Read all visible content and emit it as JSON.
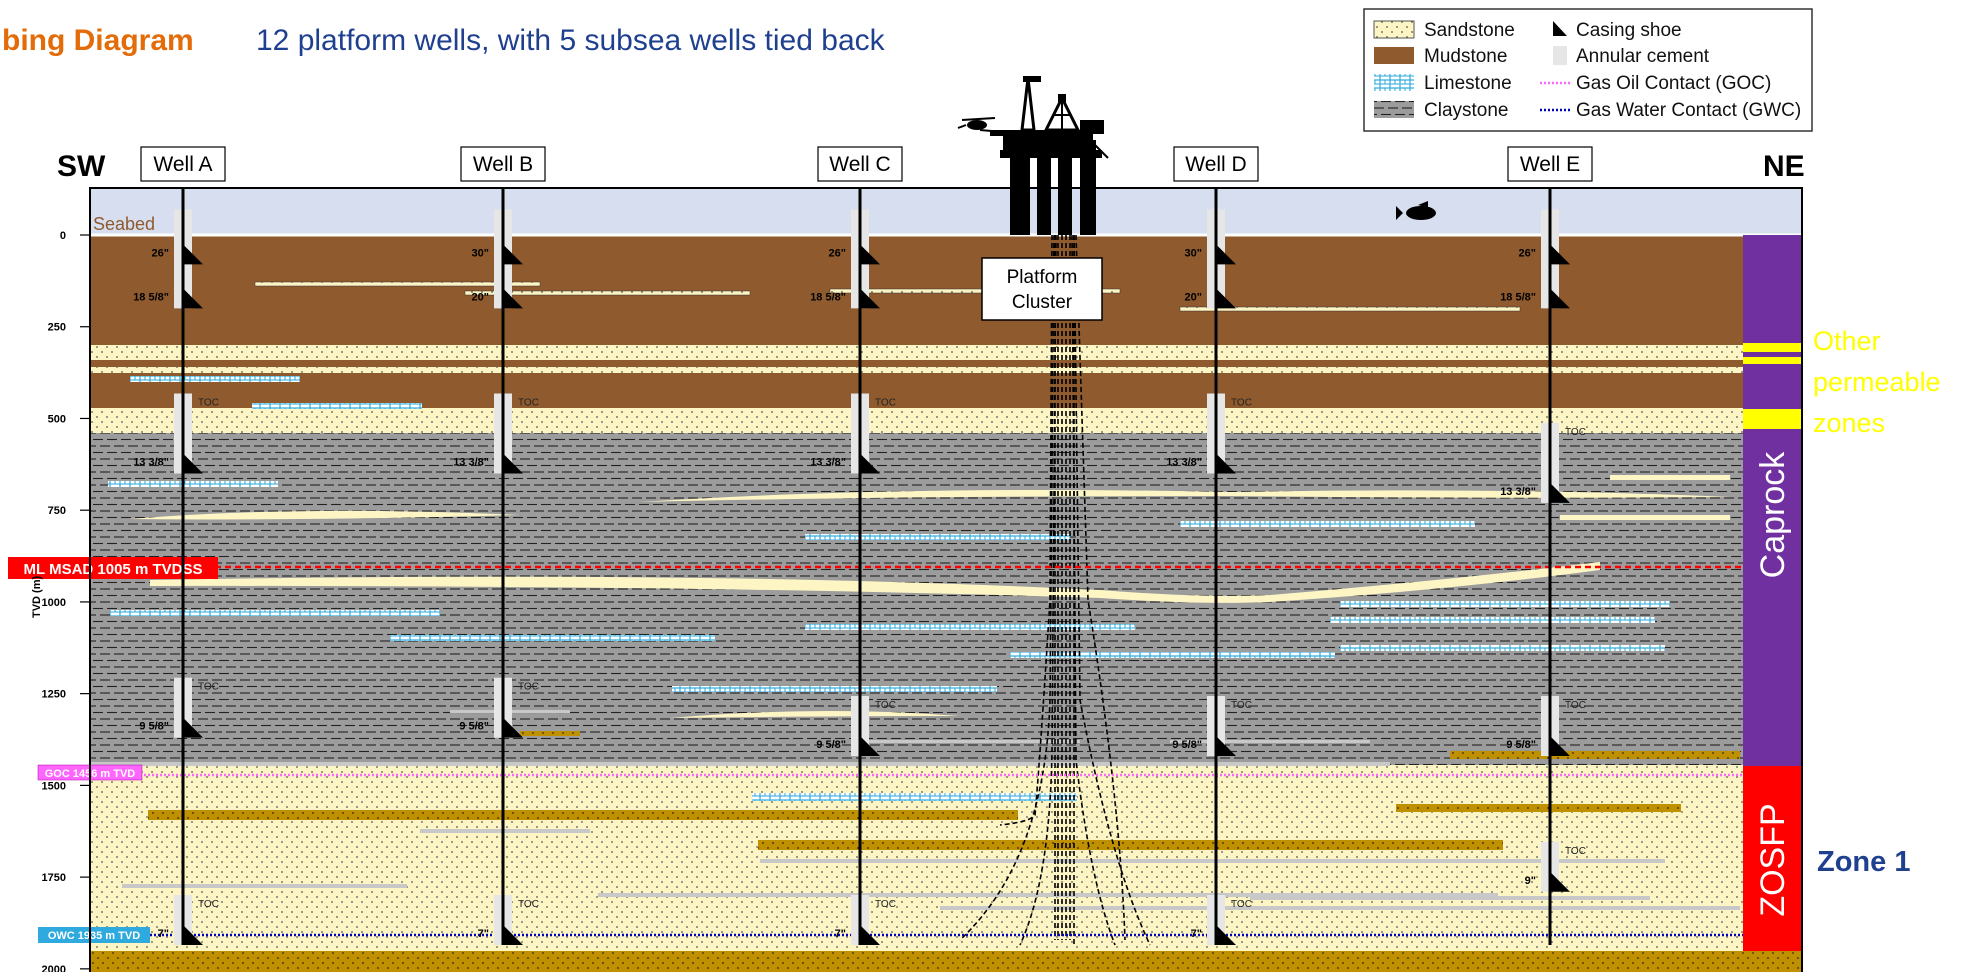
{
  "title": {
    "prefix": "bing Diagram",
    "subtitle": "12 platform wells, with 5 subsea wells tied back"
  },
  "colors": {
    "title": "#e36c09",
    "subtitle": "#1f3f8f",
    "sandstone": "#fdf5c4",
    "mudstone": "#8f5b2e",
    "limestone": "#2eaade",
    "claystone": "#9c9c9c",
    "water": "#d6deef",
    "caprock": "#7030a0",
    "zosfp": "#ff0000",
    "other_zones": "#ffff00",
    "msad": "#ff0000",
    "goc": "#ff66ff",
    "gwc": "#0000c0",
    "owc_box": "#2eaade",
    "zone1": "#1f3f8f"
  },
  "legend": {
    "items": [
      {
        "label": "Sandstone",
        "symbol": "sandstone"
      },
      {
        "label": "Mudstone",
        "symbol": "mudstone"
      },
      {
        "label": "Limestone",
        "symbol": "limestone"
      },
      {
        "label": "Claystone",
        "symbol": "claystone"
      },
      {
        "label": "Casing shoe",
        "symbol": "shoe"
      },
      {
        "label": "Annular cement",
        "symbol": "cement"
      },
      {
        "label": "Gas Oil Contact (GOC)",
        "symbol": "goc"
      },
      {
        "label": "Gas Water Contact (GWC)",
        "symbol": "gwc"
      }
    ]
  },
  "orientation": {
    "left": "SW",
    "right": "NE"
  },
  "axis": {
    "label": "TVD (m)",
    "ticks": [
      0,
      250,
      500,
      750,
      1000,
      1250,
      1500,
      1750,
      2000
    ],
    "min": 0,
    "max": 2000
  },
  "seabed_label": "Seabed",
  "platform_label_line1": "Platform",
  "platform_label_line2": "Cluster",
  "toc_label": "TOC",
  "wells": [
    {
      "name": "Well A",
      "shoes": [
        {
          "size": "26\"",
          "depth": 80
        },
        {
          "size": "18 5/8\"",
          "depth": 200
        },
        {
          "size": "13 3/8\"",
          "depth": 650
        },
        {
          "size": "9 5/8\"",
          "depth": 1370
        },
        {
          "size": "7\"",
          "depth": 1935
        }
      ]
    },
    {
      "name": "Well B",
      "shoes": [
        {
          "size": "30\"",
          "depth": 80
        },
        {
          "size": "20\"",
          "depth": 200
        },
        {
          "size": "13 3/8\"",
          "depth": 650
        },
        {
          "size": "9 5/8\"",
          "depth": 1370
        },
        {
          "size": "7\"",
          "depth": 1935
        }
      ]
    },
    {
      "name": "Well C",
      "shoes": [
        {
          "size": "26\"",
          "depth": 80
        },
        {
          "size": "18 5/8\"",
          "depth": 200
        },
        {
          "size": "13 3/8\"",
          "depth": 650
        },
        {
          "size": "9 5/8\"",
          "depth": 1420
        },
        {
          "size": "7\"",
          "depth": 1935
        }
      ]
    },
    {
      "name": "Well D",
      "shoes": [
        {
          "size": "30\"",
          "depth": 80
        },
        {
          "size": "20\"",
          "depth": 200
        },
        {
          "size": "13 3/8\"",
          "depth": 650
        },
        {
          "size": "9 5/8\"",
          "depth": 1420
        },
        {
          "size": "7\"",
          "depth": 1935
        }
      ]
    },
    {
      "name": "Well E",
      "shoes": [
        {
          "size": "26\"",
          "depth": 80
        },
        {
          "size": "18 5/8\"",
          "depth": 200
        },
        {
          "size": "13 3/8\"",
          "depth": 730
        },
        {
          "size": "9 5/8\"",
          "depth": 1420
        },
        {
          "size": "9\"",
          "depth": 1790
        }
      ]
    }
  ],
  "contacts": {
    "msad": {
      "label": "ML MSAD 1005 m TVDSS",
      "depth": 1005
    },
    "goc": {
      "label": "GOC 1456 m TVD",
      "depth": 1456
    },
    "owc": {
      "label": "OWC 1935 m TVD",
      "depth": 1935
    }
  },
  "zones": {
    "other": "Other permeable zones",
    "other_lines": [
      "Other",
      "permeable",
      "zones"
    ],
    "caprock": "Caprock",
    "zosfp": "ZOSFP",
    "zone1": "Zone 1"
  }
}
